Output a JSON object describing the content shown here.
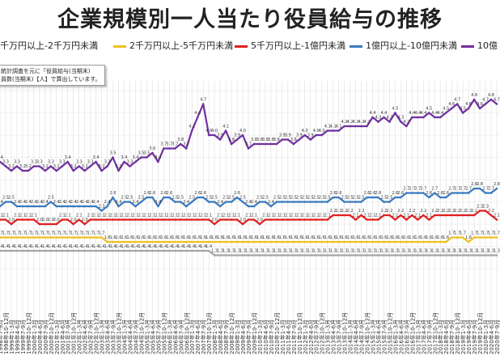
{
  "chart_data": {
    "type": "line",
    "title": "企業規模別一人当たり役員給与の推移",
    "legend": {
      "placement": "top",
      "entries": [
        {
          "label": "千万円以上-2千万円未満",
          "color": "#a6a6a6"
        },
        {
          "label": "2千万円以上-5千万円未満",
          "color": "#f0c020"
        },
        {
          "label": "5千万円以上-1億円未満",
          "color": "#e02020"
        },
        {
          "label": "1億円以上-10億円未満",
          "color": "#3a7bbf"
        },
        {
          "label": "10億",
          "color": "#7030a0"
        }
      ]
    },
    "note": {
      "lines": [
        "統計調査を元に「役員給与(当期末)",
        "員数(当期末)【人】で算出しています。"
      ]
    },
    "grid": true,
    "x": [
      "1998年7-9月",
      "1998年10-12月",
      "1999年1-3月",
      "1999年4-6月",
      "1999年7-9月",
      "1999年10-12月",
      "2000年1-3月",
      "2000年4-6月",
      "2000年7-9月",
      "2000年10-12月",
      "2001年1-3月",
      "2001年4-6月",
      "2001年7-9月",
      "2001年10-12月",
      "2002年1-3月",
      "2002年4-6月",
      "2002年7-9月",
      "2002年10-12月",
      "2003年1-3月",
      "2003年4-6月",
      "2003年7-9月",
      "2003年10-12月",
      "2004年1-3月",
      "2004年4-6月",
      "2004年7-9月",
      "2004年10-12月",
      "2005年1-3月",
      "2005年4-6月",
      "2005年7-9月",
      "2005年10-12月",
      "2006年1-3月",
      "2006年4-6月",
      "2006年7-9月",
      "2006年10-12月",
      "2007年1-3月",
      "2007年4-6月",
      "2007年7-9月",
      "2007年10-12月",
      "2008年1-3月",
      "2008年4-6月",
      "2008年7-9月",
      "2008年10-12月",
      "2009年1-3月",
      "2009年4-6月",
      "2009年7-9月",
      "2009年10-12月",
      "2010年1-3月",
      "2010年4-6月",
      "2010年7-9月",
      "2010年10-12月",
      "2011年1-3月",
      "2011年4-6月",
      "2011年7-9月",
      "2011年10-12月",
      "2012年1-3月",
      "2012年4-6月",
      "2012年7-9月",
      "2012年10-12月",
      "2013年1-3月",
      "2013年4-6月",
      "2013年7-9月",
      "2013年10-12月",
      "2014年1-3月",
      "2014年4-6月",
      "2014年7-9月",
      "2014年10-12月",
      "2015年1-3月",
      "2015年4-6月",
      "2015年7-9月",
      "2015年10-12月",
      "2016年1-3月",
      "2016年4-6月",
      "2016年7-9月",
      "2016年10-12月",
      "2017年1-3月",
      "2017年4-6月",
      "2017年7-9月",
      "2017年10-12月",
      "2018年1-3月",
      "2018年4-6月",
      "2018年7-9月",
      "2018年10-12月",
      "2019年1-3月",
      "2019年4-6月",
      "2019年7-9月",
      "2019年10-12月",
      "2020年1-3月",
      "2020年4-6月",
      "2020年7-9月"
    ],
    "ylim": [
      1.0,
      5.0
    ],
    "series": [
      {
        "name": "10億",
        "color": "#7030a0",
        "values": [
          3.4,
          3.3,
          3.2,
          3.3,
          3.2,
          3.2,
          3.3,
          3.3,
          3.2,
          3.3,
          3.2,
          3.3,
          3.4,
          3.2,
          3.3,
          3.2,
          3.3,
          3.4,
          3.2,
          3.3,
          3.5,
          3.2,
          3.4,
          3.3,
          3.4,
          3.5,
          3.5,
          3.6,
          3.4,
          3.7,
          3.7,
          3.7,
          3.8,
          3.7,
          4.1,
          4.4,
          4.7,
          4.0,
          4.0,
          3.9,
          4.1,
          3.8,
          3.9,
          4.0,
          3.7,
          3.8,
          3.8,
          3.8,
          3.8,
          3.8,
          3.9,
          3.9,
          3.8,
          3.9,
          4.0,
          3.9,
          4.0,
          4.0,
          4.1,
          4.1,
          4.1,
          4.2,
          4.2,
          4.2,
          4.2,
          4.2,
          4.4,
          4.3,
          4.4,
          4.3,
          4.5,
          4.3,
          4.2,
          4.4,
          4.4,
          4.4,
          4.5,
          4.4,
          4.4,
          4.5,
          4.6,
          4.7,
          4.5,
          4.6,
          4.8,
          4.6,
          4.7,
          4.8,
          4.7
        ]
      },
      {
        "name": "1億円以上-10億円未満",
        "color": "#3a7bbf",
        "values": [
          2.4,
          2.5,
          2.5,
          2.4,
          2.4,
          2.4,
          2.4,
          2.4,
          2.4,
          2.5,
          2.4,
          2.4,
          2.4,
          2.4,
          2.4,
          2.4,
          2.4,
          2.4,
          2.3,
          2.4,
          2.6,
          2.4,
          2.5,
          2.5,
          2.4,
          2.5,
          2.6,
          2.6,
          2.4,
          2.6,
          2.6,
          2.5,
          2.5,
          2.4,
          2.5,
          2.6,
          2.6,
          2.5,
          2.5,
          2.4,
          2.5,
          2.5,
          2.6,
          2.5,
          2.4,
          2.4,
          2.5,
          2.5,
          2.4,
          2.5,
          2.5,
          2.5,
          2.5,
          2.5,
          2.5,
          2.5,
          2.5,
          2.5,
          2.5,
          2.6,
          2.6,
          2.5,
          2.5,
          2.5,
          2.5,
          2.6,
          2.6,
          2.6,
          2.5,
          2.5,
          2.6,
          2.6,
          2.7,
          2.7,
          2.7,
          2.7,
          2.6,
          2.7,
          2.6,
          2.6,
          2.7,
          2.7,
          2.7,
          2.7,
          2.8,
          2.8,
          2.7,
          2.7,
          2.8
        ]
      },
      {
        "name": "5千万円以上-1億円未満",
        "color": "#e02020",
        "values": [
          2.1,
          2.1,
          2.0,
          2.1,
          2.1,
          2.1,
          2.1,
          2.0,
          2.0,
          2.0,
          2.0,
          2.1,
          2.1,
          2.0,
          2.1,
          2.0,
          2.1,
          2.1,
          2.1,
          2.1,
          2.1,
          2.1,
          2.1,
          2.1,
          2.1,
          2.1,
          2.1,
          2.1,
          2.1,
          2.1,
          2.1,
          2.1,
          2.1,
          2.1,
          2.1,
          2.1,
          2.1,
          2.1,
          2.0,
          2.1,
          2.1,
          2.1,
          2.1,
          2.0,
          2.1,
          2.1,
          2.0,
          2.1,
          2.1,
          2.1,
          2.1,
          2.1,
          2.1,
          2.1,
          2.1,
          2.1,
          2.1,
          2.1,
          2.1,
          2.2,
          2.2,
          2.2,
          2.2,
          2.1,
          2.2,
          2.1,
          2.1,
          2.1,
          2.2,
          2.2,
          2.1,
          2.2,
          2.1,
          2.2,
          2.1,
          2.2,
          2.1,
          2.2,
          2.2,
          2.2,
          2.2,
          2.2,
          2.2,
          2.2,
          2.2,
          2.3,
          2.3,
          2.2,
          2.1
        ]
      },
      {
        "name": "2千万円以上-5千万円未満",
        "color": "#f0c020",
        "values": [
          1.7,
          1.7,
          1.7,
          1.7,
          1.7,
          1.7,
          1.7,
          1.7,
          1.7,
          1.7,
          1.7,
          1.7,
          1.7,
          1.7,
          1.7,
          1.7,
          1.7,
          1.7,
          1.7,
          1.6,
          1.6,
          1.6,
          1.6,
          1.6,
          1.6,
          1.6,
          1.6,
          1.6,
          1.6,
          1.6,
          1.6,
          1.6,
          1.6,
          1.6,
          1.6,
          1.6,
          1.6,
          1.6,
          1.6,
          1.6,
          1.6,
          1.6,
          1.6,
          1.6,
          1.6,
          1.6,
          1.6,
          1.6,
          1.6,
          1.6,
          1.6,
          1.6,
          1.6,
          1.6,
          1.6,
          1.6,
          1.6,
          1.6,
          1.6,
          1.6,
          1.6,
          1.6,
          1.6,
          1.6,
          1.6,
          1.6,
          1.6,
          1.6,
          1.6,
          1.6,
          1.6,
          1.6,
          1.6,
          1.6,
          1.6,
          1.6,
          1.6,
          1.6,
          1.6,
          1.6,
          1.7,
          1.7,
          1.7,
          1.6,
          1.7,
          1.7,
          1.7,
          1.7,
          1.7
        ]
      },
      {
        "name": "千万円以上-2千万円未満",
        "color": "#a6a6a6",
        "values": [
          1.4,
          1.4,
          1.4,
          1.4,
          1.4,
          1.4,
          1.4,
          1.4,
          1.4,
          1.4,
          1.4,
          1.4,
          1.4,
          1.4,
          1.4,
          1.4,
          1.4,
          1.4,
          1.4,
          1.4,
          1.4,
          1.4,
          1.4,
          1.4,
          1.4,
          1.4,
          1.4,
          1.4,
          1.4,
          1.4,
          1.4,
          1.4,
          1.4,
          1.4,
          1.4,
          1.4,
          1.4,
          1.4,
          1.3,
          1.3,
          1.3,
          1.3,
          1.3,
          1.3,
          1.3,
          1.3,
          1.3,
          1.3,
          1.3,
          1.3,
          1.3,
          1.3,
          1.3,
          1.3,
          1.3,
          1.3,
          1.3,
          1.3,
          1.3,
          1.3,
          1.3,
          1.3,
          1.3,
          1.3,
          1.3,
          1.3,
          1.3,
          1.3,
          1.3,
          1.3,
          1.3,
          1.3,
          1.3,
          1.3,
          1.3,
          1.3,
          1.3,
          1.3,
          1.3,
          1.3,
          1.3,
          1.3,
          1.3,
          1.3,
          1.3,
          1.3,
          1.3,
          1.3,
          1.3
        ]
      }
    ]
  }
}
